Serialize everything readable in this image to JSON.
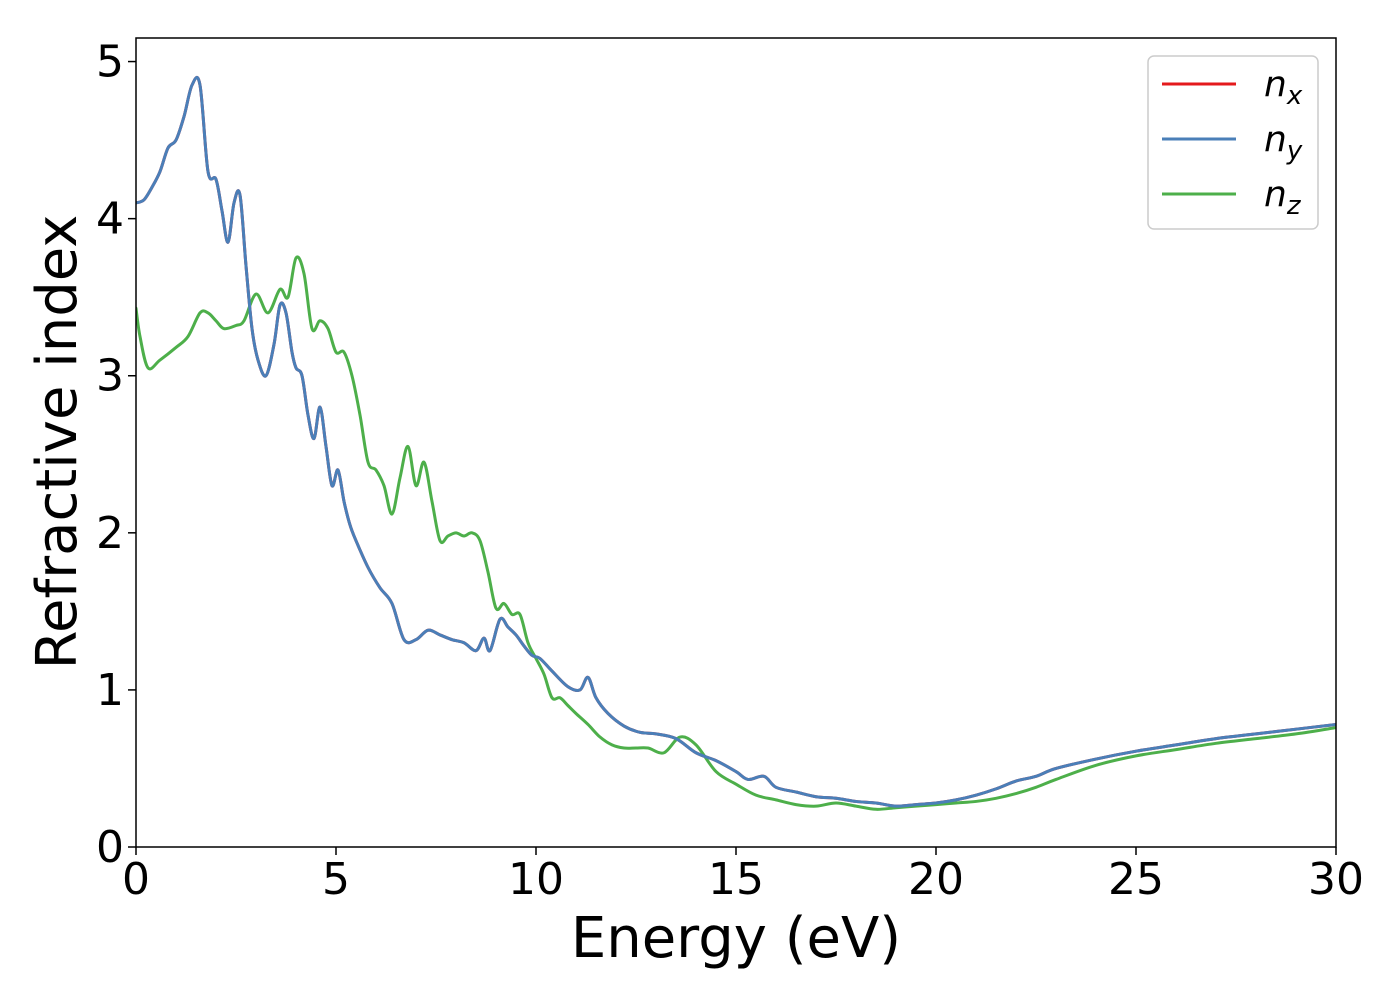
{
  "chart_data": {
    "type": "line",
    "xlabel": "Energy (eV)",
    "ylabel": "Refractive index",
    "xlim": [
      0,
      30
    ],
    "ylim": [
      0,
      5.15
    ],
    "xticks": [
      0,
      5,
      10,
      15,
      20,
      25,
      30
    ],
    "yticks": [
      0,
      1,
      2,
      3,
      4,
      5
    ],
    "grid": false,
    "legend_position": "top-right",
    "series": [
      {
        "name": "n",
        "subscript": "x",
        "color": "#e41a1c",
        "x": [
          0,
          0.2,
          0.4,
          0.6,
          0.8,
          1.0,
          1.2,
          1.4,
          1.6,
          1.8,
          2.0,
          2.15,
          2.3,
          2.45,
          2.6,
          2.75,
          2.9,
          3.05,
          3.25,
          3.45,
          3.6,
          3.75,
          3.9,
          4.0,
          4.15,
          4.3,
          4.45,
          4.6,
          4.75,
          4.9,
          5.05,
          5.2,
          5.35,
          5.5,
          5.8,
          6.1,
          6.4,
          6.7,
          7.0,
          7.3,
          7.6,
          7.9,
          8.2,
          8.5,
          8.7,
          8.85,
          9.1,
          9.3,
          9.5,
          9.7,
          9.9,
          10.1,
          10.4,
          10.8,
          11.1,
          11.3,
          11.5,
          11.8,
          12.2,
          12.6,
          13.0,
          13.5,
          14.0,
          14.5,
          15.0,
          15.3,
          15.7,
          16.0,
          16.5,
          17.0,
          17.5,
          18.0,
          18.5,
          19.0,
          19.5,
          20.0,
          20.5,
          21.0,
          21.5,
          22.0,
          22.5,
          23.0,
          24.0,
          25.0,
          26.0,
          27.0,
          28.0,
          29.0,
          30.0
        ],
        "y": [
          4.1,
          4.12,
          4.2,
          4.3,
          4.45,
          4.5,
          4.65,
          4.85,
          4.85,
          4.3,
          4.25,
          4.05,
          3.85,
          4.1,
          4.15,
          3.7,
          3.3,
          3.1,
          3.0,
          3.2,
          3.45,
          3.4,
          3.15,
          3.05,
          3.0,
          2.75,
          2.6,
          2.8,
          2.55,
          2.3,
          2.4,
          2.2,
          2.05,
          1.95,
          1.78,
          1.65,
          1.55,
          1.32,
          1.32,
          1.38,
          1.35,
          1.32,
          1.3,
          1.25,
          1.33,
          1.25,
          1.45,
          1.4,
          1.35,
          1.28,
          1.22,
          1.2,
          1.12,
          1.02,
          1.0,
          1.08,
          0.95,
          0.85,
          0.77,
          0.73,
          0.72,
          0.69,
          0.6,
          0.55,
          0.48,
          0.43,
          0.45,
          0.38,
          0.35,
          0.32,
          0.31,
          0.29,
          0.28,
          0.26,
          0.27,
          0.28,
          0.3,
          0.33,
          0.37,
          0.42,
          0.45,
          0.5,
          0.56,
          0.61,
          0.65,
          0.69,
          0.72,
          0.75,
          0.78
        ]
      },
      {
        "name": "n",
        "subscript": "y",
        "color": "#4a7fb8",
        "x": [
          0,
          0.2,
          0.4,
          0.6,
          0.8,
          1.0,
          1.2,
          1.4,
          1.6,
          1.8,
          2.0,
          2.15,
          2.3,
          2.45,
          2.6,
          2.75,
          2.9,
          3.05,
          3.25,
          3.45,
          3.6,
          3.75,
          3.9,
          4.0,
          4.15,
          4.3,
          4.45,
          4.6,
          4.75,
          4.9,
          5.05,
          5.2,
          5.35,
          5.5,
          5.8,
          6.1,
          6.4,
          6.7,
          7.0,
          7.3,
          7.6,
          7.9,
          8.2,
          8.5,
          8.7,
          8.85,
          9.1,
          9.3,
          9.5,
          9.7,
          9.9,
          10.1,
          10.4,
          10.8,
          11.1,
          11.3,
          11.5,
          11.8,
          12.2,
          12.6,
          13.0,
          13.5,
          14.0,
          14.5,
          15.0,
          15.3,
          15.7,
          16.0,
          16.5,
          17.0,
          17.5,
          18.0,
          18.5,
          19.0,
          19.5,
          20.0,
          20.5,
          21.0,
          21.5,
          22.0,
          22.5,
          23.0,
          24.0,
          25.0,
          26.0,
          27.0,
          28.0,
          29.0,
          30.0
        ],
        "y": [
          4.1,
          4.12,
          4.2,
          4.3,
          4.45,
          4.5,
          4.65,
          4.85,
          4.85,
          4.3,
          4.25,
          4.05,
          3.85,
          4.1,
          4.15,
          3.7,
          3.3,
          3.1,
          3.0,
          3.2,
          3.45,
          3.4,
          3.15,
          3.05,
          3.0,
          2.75,
          2.6,
          2.8,
          2.55,
          2.3,
          2.4,
          2.2,
          2.05,
          1.95,
          1.78,
          1.65,
          1.55,
          1.32,
          1.32,
          1.38,
          1.35,
          1.32,
          1.3,
          1.25,
          1.33,
          1.25,
          1.45,
          1.4,
          1.35,
          1.28,
          1.22,
          1.2,
          1.12,
          1.02,
          1.0,
          1.08,
          0.95,
          0.85,
          0.77,
          0.73,
          0.72,
          0.69,
          0.6,
          0.55,
          0.48,
          0.43,
          0.45,
          0.38,
          0.35,
          0.32,
          0.31,
          0.29,
          0.28,
          0.26,
          0.27,
          0.28,
          0.3,
          0.33,
          0.37,
          0.42,
          0.45,
          0.5,
          0.56,
          0.61,
          0.65,
          0.69,
          0.72,
          0.75,
          0.78
        ]
      },
      {
        "name": "n",
        "subscript": "z",
        "color": "#4daf4a",
        "x": [
          0,
          0.1,
          0.3,
          0.6,
          1.0,
          1.3,
          1.6,
          1.8,
          2.0,
          2.2,
          2.5,
          2.7,
          3.0,
          3.3,
          3.6,
          3.8,
          4.0,
          4.2,
          4.4,
          4.6,
          4.8,
          5.0,
          5.2,
          5.4,
          5.6,
          5.8,
          6.0,
          6.2,
          6.4,
          6.6,
          6.8,
          7.0,
          7.2,
          7.4,
          7.6,
          7.8,
          8.0,
          8.2,
          8.4,
          8.6,
          8.8,
          9.0,
          9.2,
          9.4,
          9.6,
          9.8,
          10.0,
          10.2,
          10.4,
          10.6,
          10.8,
          11.0,
          11.3,
          11.6,
          11.9,
          12.2,
          12.5,
          12.8,
          13.2,
          13.6,
          14.0,
          14.5,
          15.0,
          15.5,
          16.0,
          16.5,
          17.0,
          17.5,
          18.0,
          18.5,
          19.0,
          19.5,
          20.0,
          20.5,
          21.0,
          21.5,
          22.0,
          22.5,
          23.0,
          24.0,
          25.0,
          26.0,
          27.0,
          28.0,
          29.0,
          30.0
        ],
        "y": [
          3.43,
          3.25,
          3.05,
          3.1,
          3.18,
          3.25,
          3.4,
          3.4,
          3.35,
          3.3,
          3.32,
          3.35,
          3.52,
          3.4,
          3.55,
          3.5,
          3.75,
          3.65,
          3.3,
          3.35,
          3.3,
          3.15,
          3.15,
          3.0,
          2.75,
          2.45,
          2.4,
          2.3,
          2.12,
          2.35,
          2.55,
          2.3,
          2.45,
          2.2,
          1.95,
          1.98,
          2.0,
          1.98,
          2.0,
          1.95,
          1.75,
          1.52,
          1.55,
          1.48,
          1.48,
          1.3,
          1.2,
          1.1,
          0.95,
          0.95,
          0.9,
          0.85,
          0.78,
          0.7,
          0.65,
          0.63,
          0.63,
          0.63,
          0.6,
          0.7,
          0.65,
          0.48,
          0.4,
          0.33,
          0.3,
          0.27,
          0.26,
          0.28,
          0.26,
          0.24,
          0.25,
          0.26,
          0.27,
          0.28,
          0.29,
          0.31,
          0.34,
          0.38,
          0.43,
          0.52,
          0.58,
          0.62,
          0.66,
          0.69,
          0.72,
          0.76
        ]
      }
    ]
  }
}
